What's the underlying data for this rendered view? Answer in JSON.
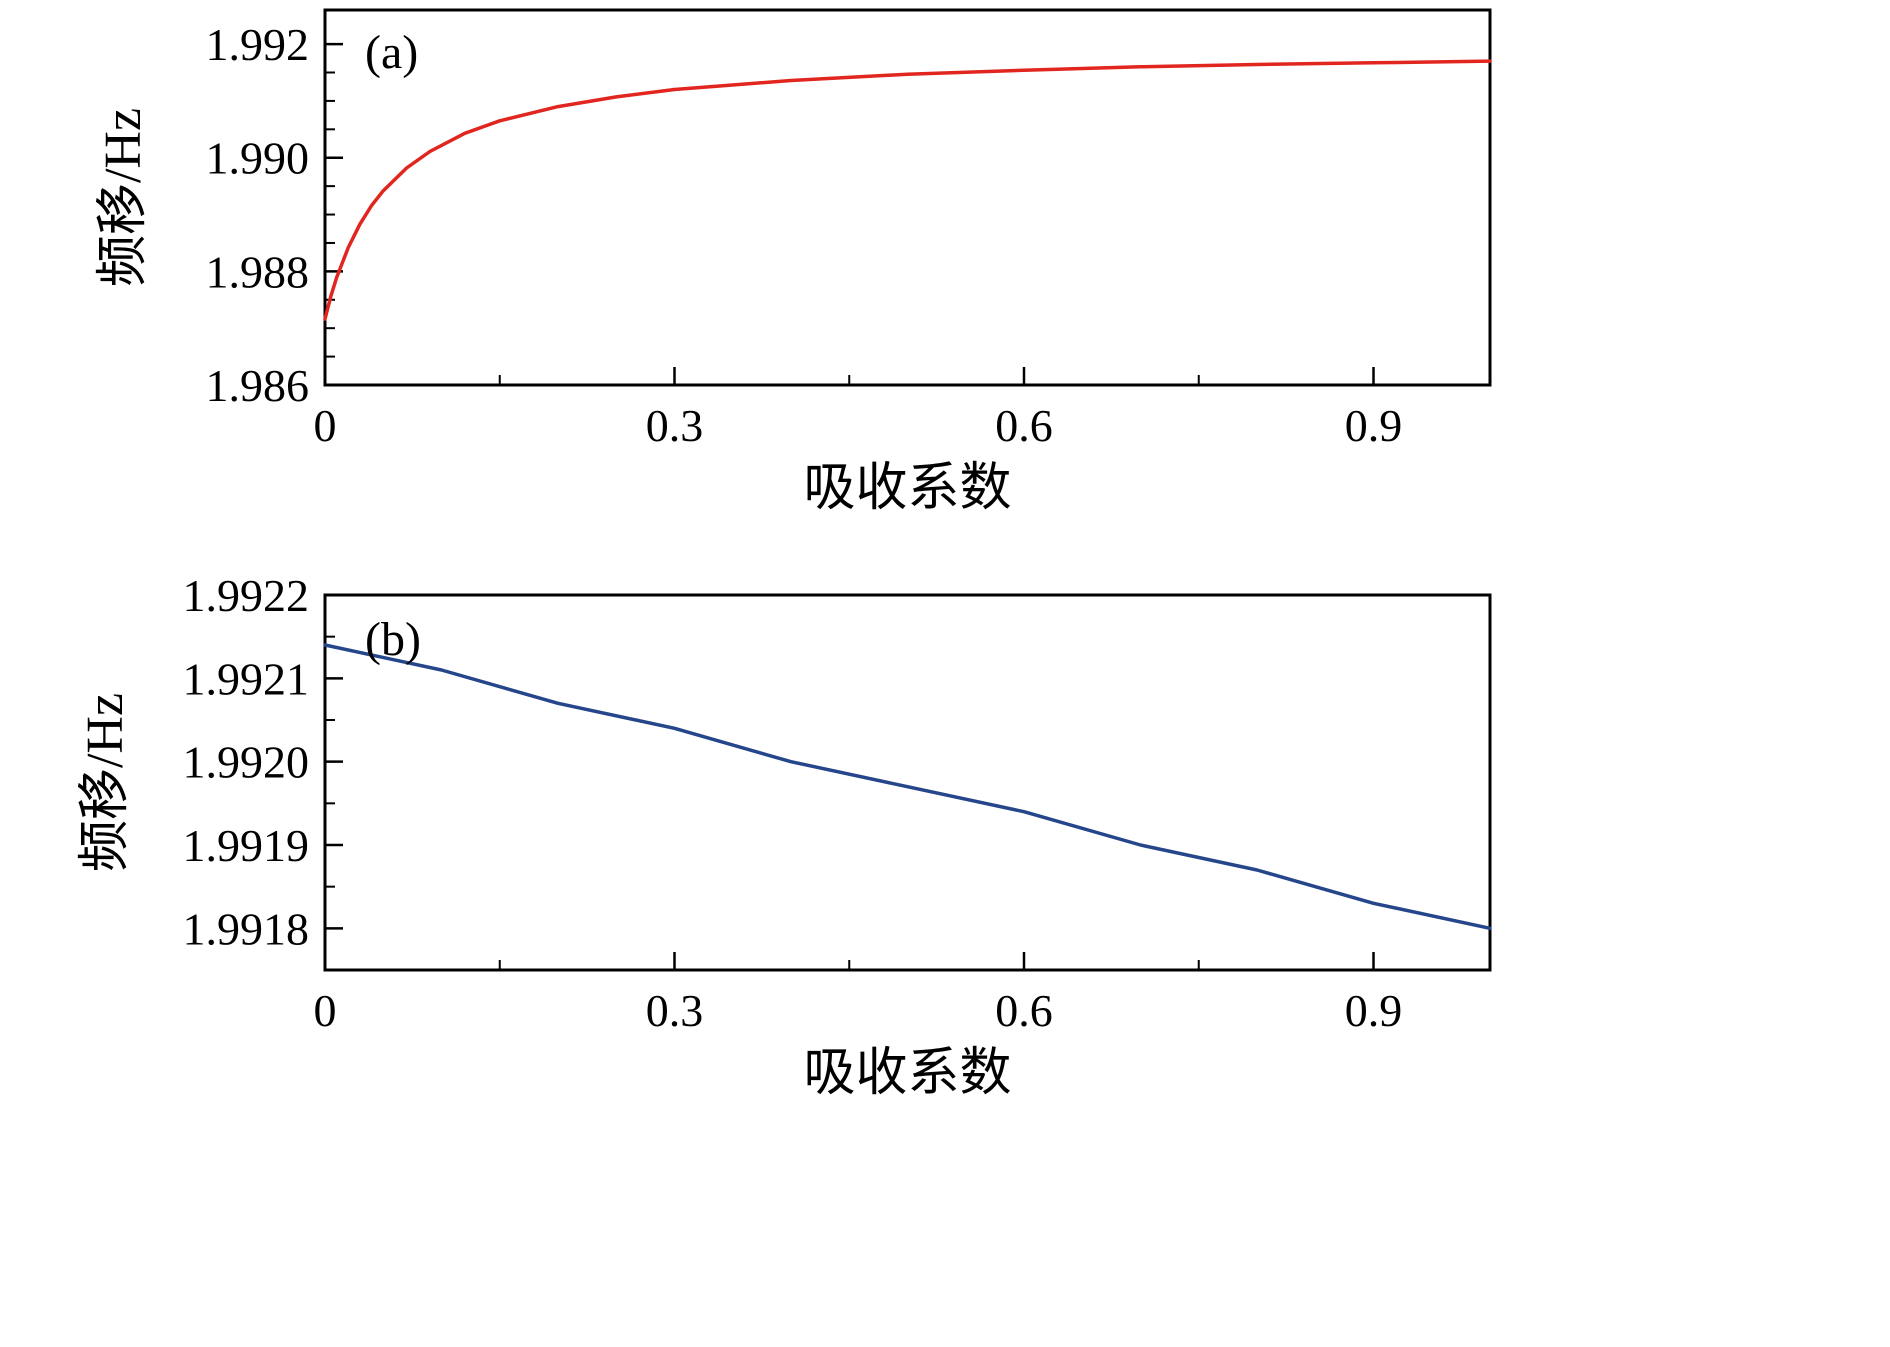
{
  "figure": {
    "background": "#ffffff",
    "axis_color": "#000000"
  },
  "chart_data": [
    {
      "type": "line",
      "panel_label": "(a)",
      "title": "",
      "xlabel": "吸收系数",
      "ylabel": "频移/Hz",
      "line_color": "#e12620",
      "grid": false,
      "legend": null,
      "xlim": [
        0,
        1.0
      ],
      "ylim": [
        1.986,
        1.9926
      ],
      "x_ticks": {
        "values": [
          0,
          0.3,
          0.6,
          0.9
        ],
        "labels": [
          "0",
          "0.3",
          "0.6",
          "0.9"
        ]
      },
      "y_ticks": {
        "values": [
          1.986,
          1.988,
          1.99,
          1.992
        ],
        "labels": [
          "1.986",
          "1.988",
          "1.990",
          "1.992"
        ]
      },
      "x_minor_step": 0.15,
      "y_minor_step": 0.0005,
      "x": [
        0,
        0.005,
        0.01,
        0.02,
        0.03,
        0.04,
        0.05,
        0.07,
        0.09,
        0.12,
        0.15,
        0.2,
        0.25,
        0.3,
        0.4,
        0.5,
        0.6,
        0.7,
        0.8,
        0.9,
        1.0
      ],
      "y": [
        1.98716,
        1.98756,
        1.98789,
        1.98842,
        1.98883,
        1.98916,
        1.98942,
        1.98982,
        1.99011,
        1.99043,
        1.99065,
        1.9909,
        1.99107,
        1.9912,
        1.99136,
        1.99147,
        1.99154,
        1.9916,
        1.99164,
        1.99167,
        1.9917
      ]
    },
    {
      "type": "line",
      "panel_label": "(b)",
      "title": "",
      "xlabel": "吸收系数",
      "ylabel": "频移/Hz",
      "line_color": "#25468a",
      "grid": false,
      "legend": null,
      "xlim": [
        0,
        1.0
      ],
      "ylim": [
        1.99175,
        1.9922
      ],
      "x_ticks": {
        "values": [
          0,
          0.3,
          0.6,
          0.9
        ],
        "labels": [
          "0",
          "0.3",
          "0.6",
          "0.9"
        ]
      },
      "y_ticks": {
        "values": [
          1.9918,
          1.9919,
          1.992,
          1.9921,
          1.9922
        ],
        "labels": [
          "1.9918",
          "1.9919",
          "1.9920",
          "1.9921",
          "1.9922"
        ]
      },
      "x_minor_step": 0.15,
      "y_minor_step": 5e-05,
      "x": [
        0,
        0.1,
        0.2,
        0.3,
        0.4,
        0.5,
        0.6,
        0.7,
        0.8,
        0.9,
        1.0
      ],
      "y": [
        1.99214,
        1.99211,
        1.99207,
        1.99204,
        1.992,
        1.99197,
        1.99194,
        1.9919,
        1.99187,
        1.99183,
        1.9918
      ]
    }
  ]
}
